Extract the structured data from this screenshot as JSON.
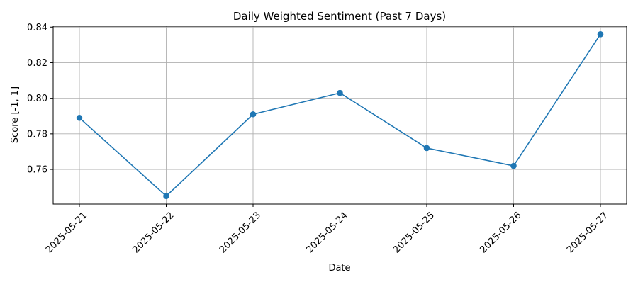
{
  "chart_data": {
    "type": "line",
    "title": "Daily Weighted Sentiment (Past 7 Days)",
    "xlabel": "Date",
    "ylabel": "Score [-1, 1]",
    "x": [
      "2025-05-21",
      "2025-05-22",
      "2025-05-23",
      "2025-05-24",
      "2025-05-25",
      "2025-05-26",
      "2025-05-27"
    ],
    "series": [
      {
        "values": [
          0.789,
          0.745,
          0.791,
          0.803,
          0.772,
          0.762,
          0.836
        ]
      }
    ],
    "ylim": [
      0.7405,
      0.8405
    ],
    "yticks": [
      0.76,
      0.78,
      0.8,
      0.82,
      0.84
    ],
    "ytick_labels": [
      "0.76",
      "0.78",
      "0.80",
      "0.82",
      "0.84"
    ],
    "grid": true,
    "marker": "circle",
    "line_color": "#1f77b4",
    "xtick_rotation_deg": 45
  }
}
